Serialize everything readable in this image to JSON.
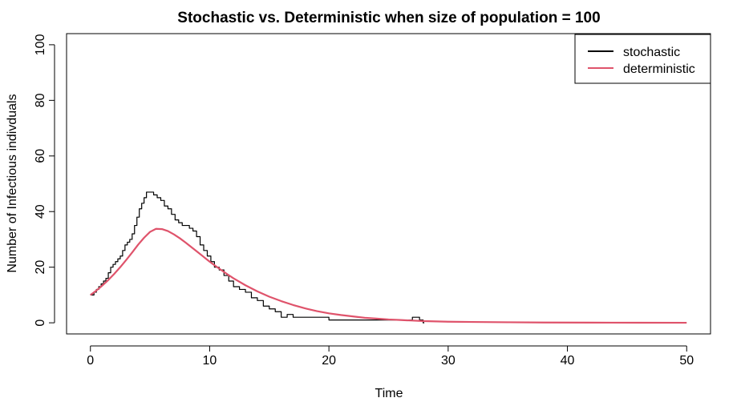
{
  "chart_data": {
    "type": "line",
    "title": "Stochastic vs. Deterministic when size of population = 100",
    "xlabel": "Time",
    "ylabel": "Number of Infectious indivduals",
    "xlim": [
      -2,
      52
    ],
    "ylim": [
      -4,
      104
    ],
    "xticks": [
      0,
      10,
      20,
      30,
      40,
      50
    ],
    "yticks": [
      0,
      20,
      40,
      60,
      80,
      100
    ],
    "grid": false,
    "legend_position": "top-right",
    "series": [
      {
        "name": "stochastic",
        "color": "#000000",
        "step": true,
        "points": [
          [
            0,
            10
          ],
          [
            0.3,
            11
          ],
          [
            0.5,
            12
          ],
          [
            0.7,
            13
          ],
          [
            0.9,
            14
          ],
          [
            1.1,
            15
          ],
          [
            1.3,
            16
          ],
          [
            1.5,
            18
          ],
          [
            1.7,
            20
          ],
          [
            1.9,
            21
          ],
          [
            2.1,
            22
          ],
          [
            2.3,
            23
          ],
          [
            2.5,
            24
          ],
          [
            2.7,
            26
          ],
          [
            2.9,
            28
          ],
          [
            3.1,
            29
          ],
          [
            3.3,
            30
          ],
          [
            3.5,
            32
          ],
          [
            3.7,
            35
          ],
          [
            3.9,
            38
          ],
          [
            4.1,
            41
          ],
          [
            4.3,
            43
          ],
          [
            4.5,
            45
          ],
          [
            4.7,
            47
          ],
          [
            5.0,
            47
          ],
          [
            5.3,
            46
          ],
          [
            5.6,
            45
          ],
          [
            5.9,
            44
          ],
          [
            6.2,
            42
          ],
          [
            6.5,
            41
          ],
          [
            6.8,
            39
          ],
          [
            7.1,
            37
          ],
          [
            7.4,
            36
          ],
          [
            7.7,
            35
          ],
          [
            8.0,
            35
          ],
          [
            8.3,
            34
          ],
          [
            8.6,
            33
          ],
          [
            8.9,
            31
          ],
          [
            9.2,
            28
          ],
          [
            9.5,
            26
          ],
          [
            9.8,
            24
          ],
          [
            10.1,
            22
          ],
          [
            10.4,
            20
          ],
          [
            10.8,
            19
          ],
          [
            11.2,
            17
          ],
          [
            11.6,
            15
          ],
          [
            12.0,
            13
          ],
          [
            12.5,
            12
          ],
          [
            13.0,
            11
          ],
          [
            13.5,
            9
          ],
          [
            14.0,
            8
          ],
          [
            14.5,
            6
          ],
          [
            15.0,
            5
          ],
          [
            15.5,
            4
          ],
          [
            16.0,
            2
          ],
          [
            16.5,
            3
          ],
          [
            17.0,
            2
          ],
          [
            18.0,
            2
          ],
          [
            19.0,
            2
          ],
          [
            20.0,
            1
          ],
          [
            22.0,
            1
          ],
          [
            24.0,
            1
          ],
          [
            26.0,
            1
          ],
          [
            27.0,
            2
          ],
          [
            27.6,
            1
          ],
          [
            27.9,
            0
          ],
          [
            28.0,
            0
          ]
        ]
      },
      {
        "name": "deterministic",
        "color": "#DF536B",
        "step": false,
        "points": [
          [
            0,
            10
          ],
          [
            0.5,
            11.6
          ],
          [
            1,
            13.4
          ],
          [
            1.5,
            15.4
          ],
          [
            2,
            17.6
          ],
          [
            2.5,
            20.0
          ],
          [
            3,
            22.6
          ],
          [
            3.5,
            25.3
          ],
          [
            4,
            28.1
          ],
          [
            4.5,
            30.6
          ],
          [
            5,
            32.7
          ],
          [
            5.5,
            33.8
          ],
          [
            6,
            33.7
          ],
          [
            6.5,
            33.0
          ],
          [
            7,
            31.8
          ],
          [
            7.5,
            30.4
          ],
          [
            8,
            28.8
          ],
          [
            8.5,
            27.1
          ],
          [
            9,
            25.4
          ],
          [
            9.5,
            23.7
          ],
          [
            10,
            22.0
          ],
          [
            10.5,
            20.4
          ],
          [
            11,
            18.9
          ],
          [
            11.5,
            17.4
          ],
          [
            12,
            16.0
          ],
          [
            13,
            13.5
          ],
          [
            14,
            11.3
          ],
          [
            15,
            9.4
          ],
          [
            16,
            7.8
          ],
          [
            17,
            6.4
          ],
          [
            18,
            5.2
          ],
          [
            19,
            4.2
          ],
          [
            20,
            3.4
          ],
          [
            21,
            2.8
          ],
          [
            22,
            2.3
          ],
          [
            23,
            1.8
          ],
          [
            24,
            1.5
          ],
          [
            25,
            1.2
          ],
          [
            26,
            1.0
          ],
          [
            27,
            0.8
          ],
          [
            28,
            0.6
          ],
          [
            30,
            0.4
          ],
          [
            32,
            0.3
          ],
          [
            35,
            0.2
          ],
          [
            38,
            0.1
          ],
          [
            42,
            0.06
          ],
          [
            46,
            0.03
          ],
          [
            50,
            0.01
          ]
        ]
      }
    ]
  }
}
